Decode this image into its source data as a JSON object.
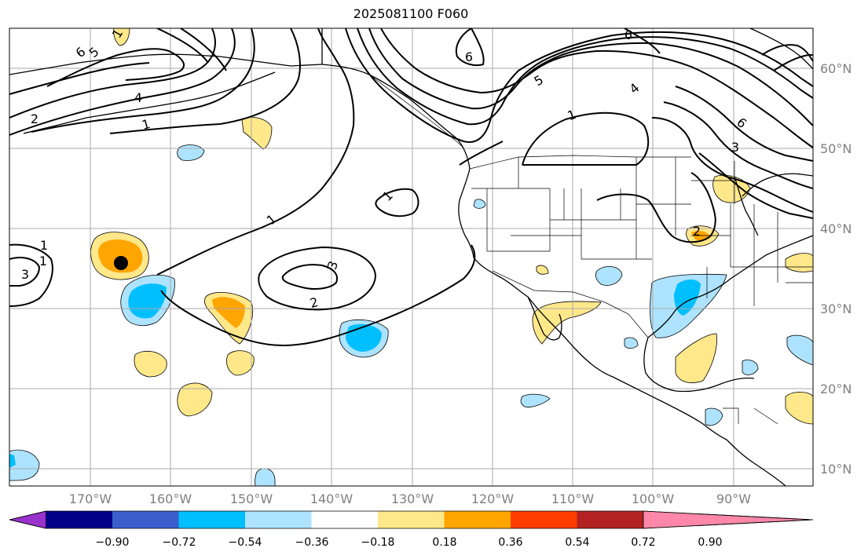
{
  "title": "2025081100 F060",
  "lat_labels": [
    "60°N",
    "50°N",
    "40°N",
    "30°N",
    "20°N",
    "10°N"
  ],
  "lon_labels": [
    "170°W",
    "160°W",
    "150°W",
    "140°W",
    "130°W",
    "120°W",
    "110°W",
    "100°W",
    "90°W"
  ],
  "contour_labels": [
    "6",
    "5",
    "4",
    "2",
    "1",
    "1",
    "6",
    "6",
    "5",
    "4",
    "1",
    "6",
    "3",
    "1",
    "1",
    "1",
    "1",
    "2",
    "3",
    "3",
    "2"
  ],
  "colorbar": {
    "ticks": [
      "−0.90",
      "−0.72",
      "−0.54",
      "−0.36",
      "−0.18",
      "0.18",
      "0.36",
      "0.54",
      "0.72",
      "0.90"
    ],
    "colors": [
      "#9932cc",
      "#00008b",
      "#3a5fcd",
      "#00bfff",
      "#aee3ff",
      "#ffffff",
      "#ffe88a",
      "#ffa500",
      "#ff3c00",
      "#b22222",
      "#ff88aa"
    ]
  }
}
